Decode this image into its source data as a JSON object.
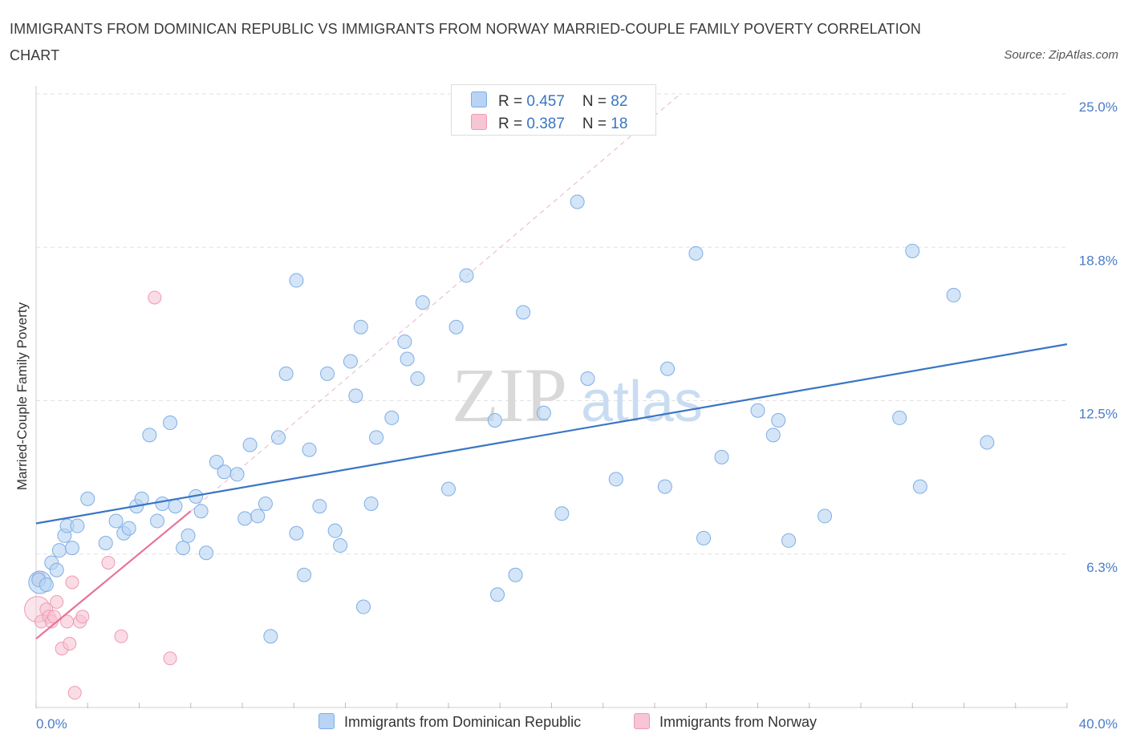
{
  "title": "IMMIGRANTS FROM DOMINICAN REPUBLIC VS IMMIGRANTS FROM NORWAY MARRIED-COUPLE FAMILY POVERTY CORRELATION CHART",
  "source": "Source: ZipAtlas.com",
  "watermark": {
    "zip": "ZIP",
    "atlas": "atlas"
  },
  "legend_top": {
    "rows": [
      {
        "r_label": "R = ",
        "r_value": "0.457",
        "n_label": "N = ",
        "n_value": "82"
      },
      {
        "r_label": "R = ",
        "r_value": "0.387",
        "n_label": "N = ",
        "n_value": "18"
      }
    ]
  },
  "colors": {
    "blue_fill": "#b8d3f3",
    "blue_stroke": "#7eaee5",
    "blue_line": "#3a75c4",
    "pink_fill": "#f7c5d4",
    "pink_stroke": "#ee9ab4",
    "pink_line": "#e8719a",
    "tick_text": "#4a7cc7",
    "grid": "#e2e2e2"
  },
  "chart_data": {
    "type": "scatter",
    "title": "IMMIGRANTS FROM DOMINICAN REPUBLIC VS IMMIGRANTS FROM NORWAY MARRIED-COUPLE FAMILY POVERTY CORRELATION CHART",
    "xlabel": "",
    "ylabel": "Married-Couple Family Poverty",
    "xlim": [
      0,
      40
    ],
    "ylim": [
      0,
      25
    ],
    "x_tick_labels": [
      "0.0%",
      "40.0%"
    ],
    "y_ticks": [
      6.25,
      12.5,
      18.75,
      25.0
    ],
    "y_tick_labels": [
      "6.3%",
      "12.5%",
      "18.8%",
      "25.0%"
    ],
    "grid": true,
    "legend_position": "bottom-center",
    "series": [
      {
        "name": "Immigrants from Dominican Republic",
        "r": 0.457,
        "n": 82,
        "trend": {
          "x": [
            0,
            40
          ],
          "y": [
            7.5,
            14.8
          ]
        },
        "points": [
          [
            0.1,
            5.2
          ],
          [
            0.4,
            5.0
          ],
          [
            0.6,
            5.9
          ],
          [
            0.8,
            5.6
          ],
          [
            0.9,
            6.4
          ],
          [
            1.1,
            7.0
          ],
          [
            1.2,
            7.4
          ],
          [
            1.4,
            6.5
          ],
          [
            1.6,
            7.4
          ],
          [
            2.0,
            8.5
          ],
          [
            2.7,
            6.7
          ],
          [
            3.1,
            7.6
          ],
          [
            3.4,
            7.1
          ],
          [
            3.6,
            7.3
          ],
          [
            3.9,
            8.2
          ],
          [
            4.1,
            8.5
          ],
          [
            4.4,
            11.1
          ],
          [
            4.7,
            7.6
          ],
          [
            4.9,
            8.3
          ],
          [
            5.2,
            11.6
          ],
          [
            5.4,
            8.2
          ],
          [
            5.7,
            6.5
          ],
          [
            5.9,
            7.0
          ],
          [
            6.2,
            8.6
          ],
          [
            6.4,
            8.0
          ],
          [
            6.6,
            6.3
          ],
          [
            7.0,
            10.0
          ],
          [
            7.3,
            9.6
          ],
          [
            7.8,
            9.5
          ],
          [
            8.1,
            7.7
          ],
          [
            8.3,
            10.7
          ],
          [
            8.6,
            7.8
          ],
          [
            8.9,
            8.3
          ],
          [
            9.1,
            2.9
          ],
          [
            9.4,
            11.0
          ],
          [
            9.7,
            13.6
          ],
          [
            10.1,
            7.1
          ],
          [
            10.1,
            17.4
          ],
          [
            10.4,
            5.4
          ],
          [
            10.6,
            10.5
          ],
          [
            11.0,
            8.2
          ],
          [
            11.3,
            13.6
          ],
          [
            11.6,
            7.2
          ],
          [
            11.8,
            6.6
          ],
          [
            12.2,
            14.1
          ],
          [
            12.4,
            12.7
          ],
          [
            12.6,
            15.5
          ],
          [
            12.7,
            4.1
          ],
          [
            13.0,
            8.3
          ],
          [
            13.2,
            11.0
          ],
          [
            13.8,
            11.8
          ],
          [
            14.3,
            14.9
          ],
          [
            14.4,
            14.2
          ],
          [
            14.8,
            13.4
          ],
          [
            15.0,
            16.5
          ],
          [
            16.0,
            8.9
          ],
          [
            16.3,
            15.5
          ],
          [
            16.7,
            17.6
          ],
          [
            17.8,
            11.7
          ],
          [
            17.9,
            4.6
          ],
          [
            18.6,
            5.4
          ],
          [
            18.9,
            16.1
          ],
          [
            19.7,
            12.0
          ],
          [
            20.4,
            7.9
          ],
          [
            21.0,
            20.6
          ],
          [
            21.4,
            13.4
          ],
          [
            22.5,
            9.3
          ],
          [
            24.5,
            13.8
          ],
          [
            24.4,
            9.0
          ],
          [
            25.6,
            18.5
          ],
          [
            25.9,
            6.9
          ],
          [
            26.6,
            10.2
          ],
          [
            28.0,
            12.1
          ],
          [
            28.6,
            11.1
          ],
          [
            28.8,
            11.7
          ],
          [
            29.2,
            6.8
          ],
          [
            30.6,
            7.8
          ],
          [
            33.5,
            11.8
          ],
          [
            34.0,
            18.6
          ],
          [
            34.3,
            9.0
          ],
          [
            35.6,
            16.8
          ],
          [
            36.9,
            10.8
          ]
        ]
      },
      {
        "name": "Immigrants from Norway",
        "r": 0.387,
        "n": 18,
        "trend": {
          "x": [
            0,
            6.0
          ],
          "y": [
            2.8,
            8.0
          ]
        },
        "points": [
          [
            0.1,
            5.3
          ],
          [
            0.2,
            3.5
          ],
          [
            0.4,
            4.0
          ],
          [
            0.5,
            3.7
          ],
          [
            0.6,
            3.5
          ],
          [
            0.7,
            3.7
          ],
          [
            0.8,
            4.3
          ],
          [
            1.0,
            2.4
          ],
          [
            1.2,
            3.5
          ],
          [
            1.3,
            2.6
          ],
          [
            1.4,
            5.1
          ],
          [
            1.5,
            0.6
          ],
          [
            1.7,
            3.5
          ],
          [
            1.8,
            3.7
          ],
          [
            2.8,
            5.9
          ],
          [
            3.3,
            2.9
          ],
          [
            4.6,
            16.7
          ],
          [
            5.2,
            2.0
          ]
        ]
      }
    ],
    "reference_line": {
      "style": "dashed",
      "x": [
        6.0,
        25.0
      ],
      "y": [
        8.0,
        25.0
      ]
    }
  },
  "bottom_legend": [
    {
      "label": "Immigrants from Dominican Republic"
    },
    {
      "label": "Immigrants from Norway"
    }
  ]
}
